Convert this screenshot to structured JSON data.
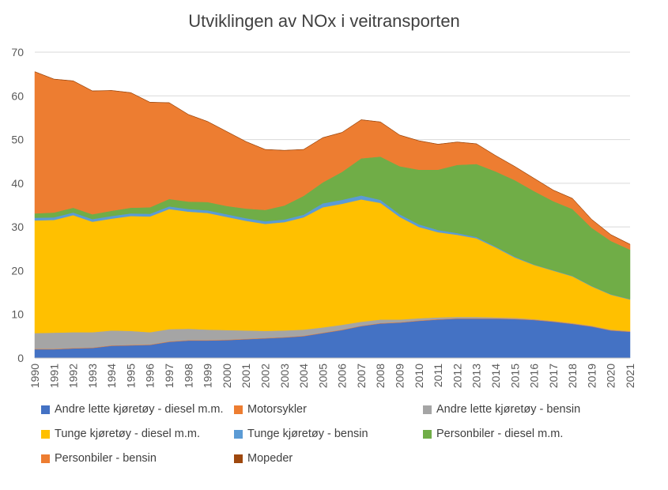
{
  "chart_data": {
    "type": "area",
    "stacked": true,
    "title": "Utviklingen av NOx i veitransporten",
    "xlabel": "",
    "ylabel": "",
    "ylim": [
      0,
      70
    ],
    "yticks": [
      0,
      10,
      20,
      30,
      40,
      50,
      60,
      70
    ],
    "grid": true,
    "legend_position": "bottom",
    "x": [
      "1990",
      "1991",
      "1992",
      "1993",
      "1994",
      "1995",
      "1996",
      "1997",
      "1998",
      "1999",
      "2000",
      "2001",
      "2002",
      "2003",
      "2004",
      "2005",
      "2006",
      "2007",
      "2008",
      "2009",
      "2010",
      "2011",
      "2012",
      "2013",
      "2014",
      "2015",
      "2016",
      "2017",
      "2018",
      "2019",
      "2020",
      "2021"
    ],
    "series": [
      {
        "name": "Andre lette kjøretøy - diesel m.m.",
        "color": "#4472C4",
        "values": [
          2.0,
          2.0,
          2.2,
          2.3,
          2.8,
          2.9,
          3.0,
          3.7,
          4.0,
          4.0,
          4.1,
          4.3,
          4.5,
          4.7,
          5.0,
          5.7,
          6.4,
          7.3,
          7.9,
          8.1,
          8.5,
          8.8,
          9.0,
          9.0,
          9.0,
          8.9,
          8.7,
          8.3,
          7.8,
          7.2,
          6.3,
          6.0
        ]
      },
      {
        "name": "Motorsykler",
        "color": "#ED7D31",
        "values": [
          0.1,
          0.1,
          0.1,
          0.1,
          0.1,
          0.1,
          0.1,
          0.1,
          0.1,
          0.1,
          0.1,
          0.1,
          0.1,
          0.1,
          0.1,
          0.1,
          0.1,
          0.1,
          0.1,
          0.1,
          0.1,
          0.1,
          0.1,
          0.1,
          0.1,
          0.1,
          0.1,
          0.1,
          0.1,
          0.1,
          0.1,
          0.1
        ]
      },
      {
        "name": "Andre lette kjøretøy - bensin",
        "color": "#A5A5A5",
        "values": [
          3.6,
          3.7,
          3.6,
          3.5,
          3.4,
          3.2,
          2.8,
          2.8,
          2.6,
          2.4,
          2.2,
          1.9,
          1.6,
          1.5,
          1.4,
          1.2,
          1.1,
          0.9,
          0.8,
          0.6,
          0.5,
          0.4,
          0.3,
          0.3,
          0.2,
          0.2,
          0.1,
          0.1,
          0.1,
          0.1,
          0.1,
          0.1
        ]
      },
      {
        "name": "Tunge kjøretøy - diesel m.m.",
        "color": "#FFC000",
        "values": [
          25.8,
          25.8,
          26.8,
          25.3,
          25.6,
          26.3,
          26.5,
          27.5,
          26.8,
          26.7,
          25.9,
          25.1,
          24.5,
          24.8,
          25.7,
          27.5,
          27.7,
          28.0,
          26.7,
          23.5,
          20.9,
          19.5,
          18.8,
          18.0,
          16.0,
          13.8,
          12.4,
          11.5,
          10.7,
          9.0,
          8.0,
          7.2
        ]
      },
      {
        "name": "Tunge kjøretøy - bensin",
        "color": "#5B9BD5",
        "values": [
          0.6,
          0.6,
          0.6,
          0.6,
          0.6,
          0.6,
          0.6,
          0.6,
          0.6,
          0.6,
          0.6,
          0.6,
          0.6,
          0.6,
          0.6,
          0.9,
          0.9,
          0.9,
          0.7,
          0.6,
          0.6,
          0.5,
          0.4,
          0.3,
          0.2,
          0.2,
          0.1,
          0.1,
          0.1,
          0.1,
          0.1,
          0.1
        ]
      },
      {
        "name": "Personbiler - diesel m.m.",
        "color": "#70AD47",
        "values": [
          1.0,
          1.1,
          1.1,
          1.1,
          1.2,
          1.3,
          1.5,
          1.7,
          1.7,
          1.9,
          1.9,
          2.2,
          2.6,
          3.2,
          4.3,
          4.8,
          6.4,
          8.5,
          9.9,
          11.0,
          12.5,
          13.8,
          15.6,
          16.7,
          17.2,
          17.5,
          16.8,
          15.8,
          15.3,
          13.3,
          12.2,
          11.3
        ]
      },
      {
        "name": "Personbiler - bensin",
        "color": "#ED7D31",
        "values": [
          32.4,
          30.5,
          29.0,
          28.2,
          27.5,
          26.3,
          24.0,
          22.0,
          19.9,
          18.4,
          17.0,
          15.3,
          13.8,
          12.6,
          10.6,
          10.2,
          9.0,
          8.8,
          7.9,
          7.1,
          6.6,
          5.8,
          5.2,
          4.6,
          3.6,
          3.1,
          2.9,
          2.5,
          2.4,
          1.9,
          1.4,
          1.2
        ]
      },
      {
        "name": "Mopeder",
        "color": "#9E480E",
        "values": [
          0.05,
          0.05,
          0.05,
          0.05,
          0.05,
          0.05,
          0.05,
          0.05,
          0.05,
          0.05,
          0.05,
          0.05,
          0.05,
          0.05,
          0.05,
          0.05,
          0.05,
          0.05,
          0.05,
          0.05,
          0.05,
          0.05,
          0.05,
          0.05,
          0.05,
          0.05,
          0.05,
          0.05,
          0.05,
          0.05,
          0.05,
          0.05
        ]
      }
    ],
    "legend_order": [
      0,
      1,
      2,
      3,
      4,
      5,
      6,
      7
    ]
  }
}
